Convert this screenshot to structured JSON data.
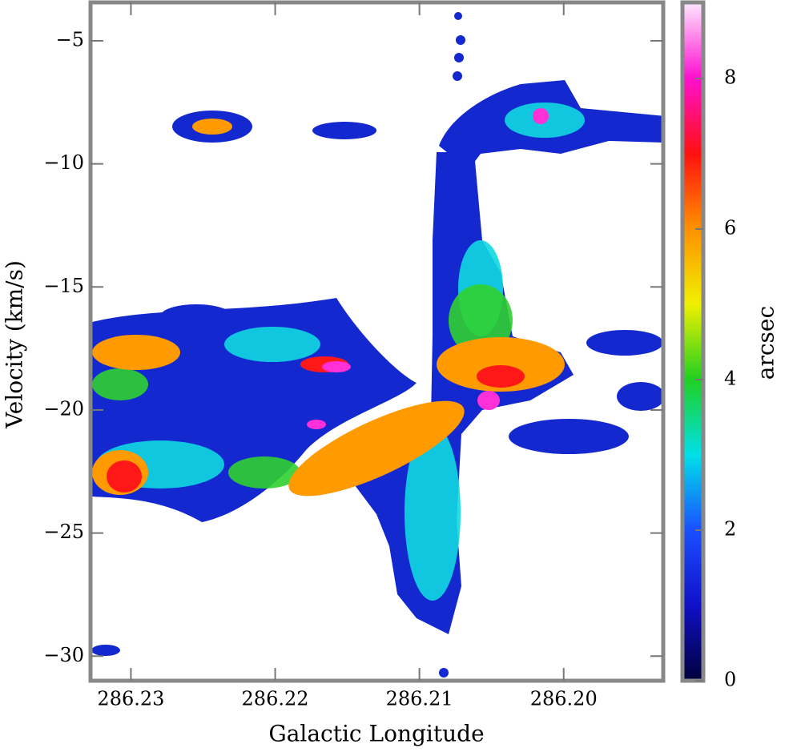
{
  "chart_data": {
    "type": "heatmap",
    "xlabel": "Galactic Longitude",
    "ylabel": "Velocity (km/s)",
    "colorbar_label": "arcsec",
    "xlim": [
      286.2328,
      286.1931
    ],
    "xticks": [
      286.23,
      286.22,
      286.21,
      {
        "value": 286.2,
        "label": "286.20"
      }
    ],
    "ylim": [
      -31.0,
      -3.44
    ],
    "yticks": [
      {
        "value": -5,
        "label": "−5"
      },
      {
        "value": -10,
        "label": "−10"
      },
      {
        "value": -15,
        "label": "−15"
      },
      {
        "value": -20,
        "label": "−20"
      },
      {
        "value": -25,
        "label": "−25"
      },
      {
        "value": -30,
        "label": "−30"
      }
    ],
    "clim": [
      0,
      9.01
    ],
    "cticks": [
      0,
      2,
      4,
      6,
      8
    ],
    "colormap": [
      "#00003a",
      "#1010c8",
      "#1a50ff",
      "#00e0e8",
      "#20d020",
      "#f0f000",
      "#ff9000",
      "#ff1010",
      "#ff10d0",
      "#ffe8ff"
    ]
  }
}
